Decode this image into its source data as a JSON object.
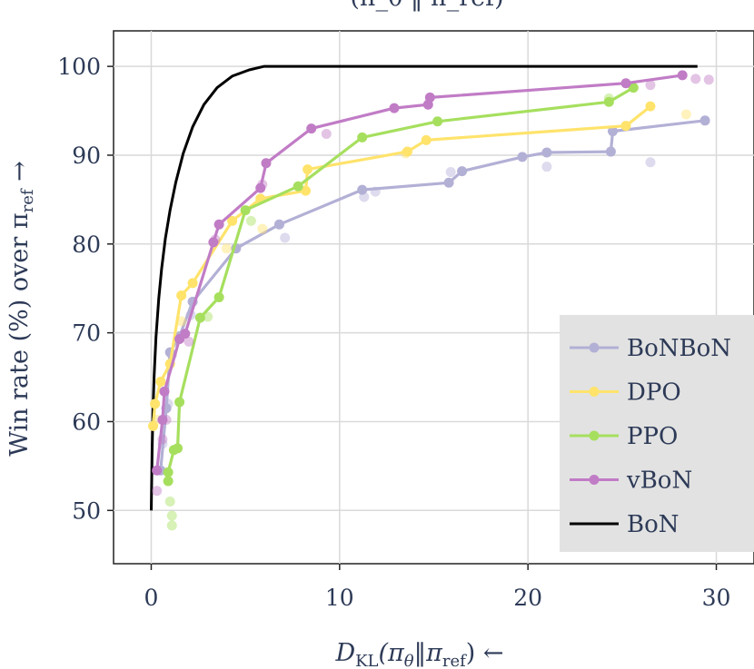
{
  "chart_data": {
    "type": "line",
    "title": "(π_θ ‖ π_ref)",
    "xlabel": "D_KL(π_θ‖π_ref) ←",
    "xlabel_parts": {
      "D": "D",
      "KL": "KL",
      "open": "(π",
      "theta": "θ",
      "bar": "‖π",
      "ref": "ref",
      "close": ") ←"
    },
    "ylabel": "Win rate (%) over π_ref →",
    "ylabel_parts": {
      "main": "Win rate (%) over π",
      "ref": "ref",
      "arrow": " →"
    },
    "xlim": [
      -2,
      32
    ],
    "ylim": [
      44,
      104
    ],
    "xticks": [
      0,
      10,
      20,
      30
    ],
    "yticks": [
      50,
      60,
      70,
      80,
      90,
      100
    ],
    "grid": true,
    "legend_position": "bottom-right",
    "series": [
      {
        "name": "BoNBoN",
        "color": "#b3b0d6",
        "points": [
          [
            0.5,
            54.5
          ],
          [
            0.8,
            61.5
          ],
          [
            1.0,
            67.8
          ],
          [
            1.5,
            69.6
          ],
          [
            2.2,
            73.5
          ],
          [
            4.5,
            79.5
          ],
          [
            6.8,
            82.2
          ],
          [
            11.2,
            86.1
          ],
          [
            15.8,
            86.9
          ],
          [
            16.5,
            88.2
          ],
          [
            19.7,
            89.8
          ],
          [
            21.0,
            90.3
          ],
          [
            24.4,
            90.4
          ],
          [
            24.5,
            92.7
          ],
          [
            29.4,
            93.9
          ]
        ],
        "scatter": [
          [
            0.6,
            57.5
          ],
          [
            0.9,
            62.0
          ],
          [
            1.1,
            67.5
          ],
          [
            2.1,
            72.0
          ],
          [
            7.1,
            80.7
          ],
          [
            11.3,
            85.3
          ],
          [
            11.9,
            85.9
          ],
          [
            15.9,
            88.1
          ],
          [
            21.0,
            88.7
          ],
          [
            26.5,
            89.2
          ]
        ]
      },
      {
        "name": "DPO",
        "color": "#ffe36b",
        "points": [
          [
            0.1,
            59.5
          ],
          [
            0.2,
            62.0
          ],
          [
            0.5,
            64.5
          ],
          [
            1.0,
            66.5
          ],
          [
            1.6,
            74.2
          ],
          [
            2.2,
            75.6
          ],
          [
            4.3,
            82.6
          ],
          [
            5.8,
            85.1
          ],
          [
            8.2,
            86.0
          ],
          [
            8.3,
            88.4
          ],
          [
            13.6,
            90.4
          ],
          [
            14.6,
            91.7
          ],
          [
            25.2,
            93.3
          ],
          [
            26.5,
            95.5
          ]
        ],
        "scatter": [
          [
            0.3,
            60.2
          ],
          [
            1.6,
            71.3
          ],
          [
            4.0,
            79.5
          ],
          [
            5.9,
            81.7
          ],
          [
            13.5,
            90.2
          ],
          [
            28.4,
            94.6
          ]
        ]
      },
      {
        "name": "PPO",
        "color": "#a6df5e",
        "points": [
          [
            0.9,
            53.3
          ],
          [
            0.9,
            54.3
          ],
          [
            1.2,
            56.8
          ],
          [
            1.4,
            57.0
          ],
          [
            1.5,
            62.2
          ],
          [
            2.6,
            71.7
          ],
          [
            3.6,
            74.0
          ],
          [
            5.0,
            83.8
          ],
          [
            7.8,
            86.5
          ],
          [
            11.2,
            92.0
          ],
          [
            15.2,
            93.8
          ],
          [
            24.3,
            96.0
          ],
          [
            25.6,
            97.6
          ]
        ],
        "scatter": [
          [
            1.0,
            51.0
          ],
          [
            1.1,
            49.4
          ],
          [
            1.1,
            48.3
          ],
          [
            3.0,
            71.8
          ],
          [
            5.3,
            82.6
          ],
          [
            24.3,
            96.4
          ]
        ]
      },
      {
        "name": "vBoN",
        "color": "#c17cc6",
        "points": [
          [
            0.3,
            54.5
          ],
          [
            0.6,
            60.2
          ],
          [
            0.7,
            63.4
          ],
          [
            1.5,
            69.3
          ],
          [
            1.8,
            69.9
          ],
          [
            3.3,
            80.2
          ],
          [
            3.6,
            82.2
          ],
          [
            5.8,
            86.3
          ],
          [
            6.1,
            89.1
          ],
          [
            8.5,
            93.0
          ],
          [
            12.9,
            95.3
          ],
          [
            14.7,
            95.7
          ],
          [
            14.8,
            96.5
          ],
          [
            25.2,
            98.1
          ],
          [
            28.2,
            99.0
          ]
        ],
        "scatter": [
          [
            0.3,
            52.2
          ],
          [
            0.6,
            58.0
          ],
          [
            0.8,
            60.2
          ],
          [
            2.0,
            69.0
          ],
          [
            3.4,
            80.5
          ],
          [
            5.9,
            86.7
          ],
          [
            9.3,
            92.4
          ],
          [
            26.5,
            97.9
          ],
          [
            28.9,
            98.6
          ],
          [
            29.6,
            98.5
          ]
        ]
      },
      {
        "name": "BoN",
        "color": "#000000",
        "points": [
          [
            0,
            50
          ],
          [
            0.05,
            57
          ],
          [
            0.1,
            61.6
          ],
          [
            0.15,
            65
          ],
          [
            0.25,
            69.5
          ],
          [
            0.4,
            73.9
          ],
          [
            0.55,
            77.2
          ],
          [
            0.75,
            80.6
          ],
          [
            1.0,
            83.8
          ],
          [
            1.3,
            86.9
          ],
          [
            1.7,
            90.2
          ],
          [
            2.2,
            93.2
          ],
          [
            2.8,
            95.7
          ],
          [
            3.5,
            97.6
          ],
          [
            4.3,
            98.9
          ],
          [
            5.2,
            99.6
          ],
          [
            6.0,
            100
          ],
          [
            10,
            100
          ],
          [
            20,
            100
          ],
          [
            29,
            100
          ]
        ],
        "scatter": []
      }
    ]
  }
}
